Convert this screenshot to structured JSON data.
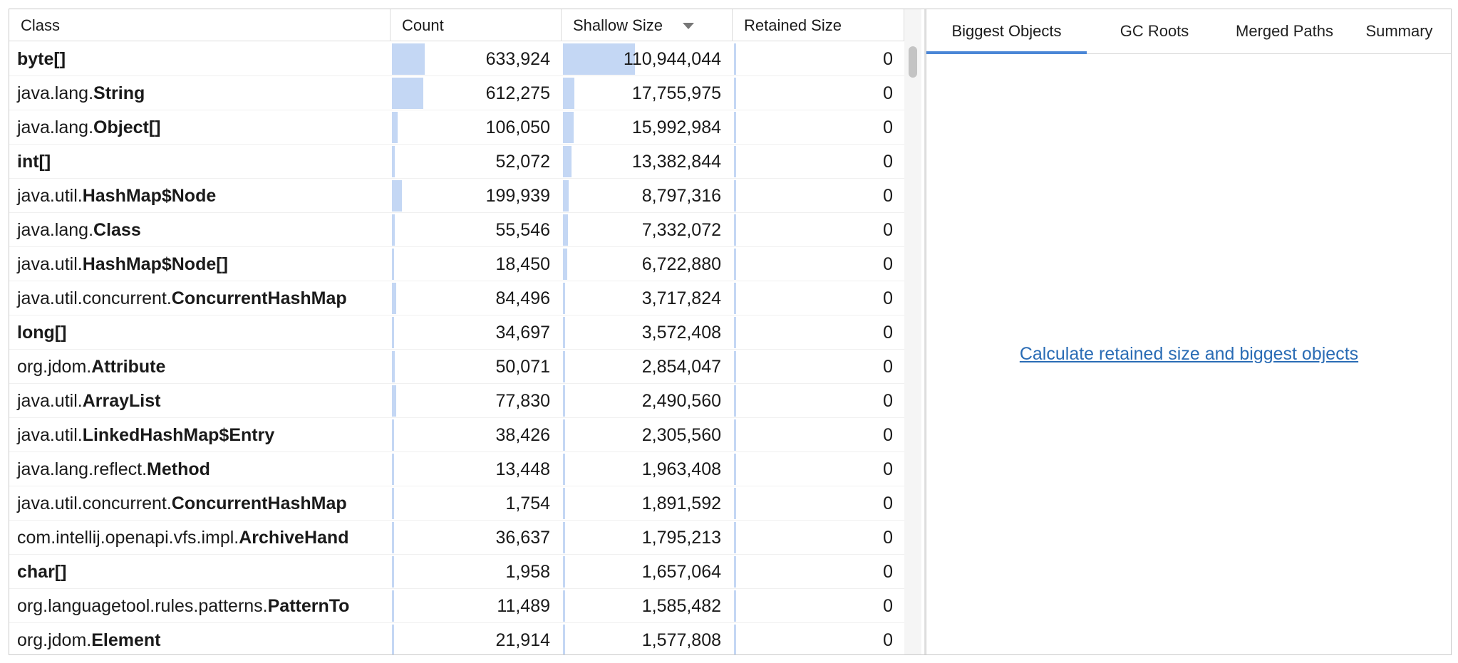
{
  "table": {
    "columns": [
      "Class",
      "Count",
      "Shallow Size",
      "Retained Size"
    ],
    "rows": [
      {
        "name": "byte[]",
        "count": "633,924",
        "shallow": "110,944,044",
        "retained": "0"
      },
      {
        "package": "java.lang.",
        "name": "String",
        "count": "612,275",
        "shallow": "17,755,975",
        "retained": "0"
      },
      {
        "package": "java.lang.",
        "name": "Object[]",
        "count": "106,050",
        "shallow": "15,992,984",
        "retained": "0"
      },
      {
        "name": "int[]",
        "count": "52,072",
        "shallow": "13,382,844",
        "retained": "0"
      },
      {
        "package": "java.util.",
        "name": "HashMap$Node",
        "count": "199,939",
        "shallow": "8,797,316",
        "retained": "0"
      },
      {
        "package": "java.lang.",
        "name": "Class",
        "count": "55,546",
        "shallow": "7,332,072",
        "retained": "0"
      },
      {
        "package": "java.util.",
        "name": "HashMap$Node[]",
        "count": "18,450",
        "shallow": "6,722,880",
        "retained": "0"
      },
      {
        "package": "java.util.concurrent.",
        "name": "ConcurrentHashMap",
        "count": "84,496",
        "shallow": "3,717,824",
        "retained": "0"
      },
      {
        "name": "long[]",
        "count": "34,697",
        "shallow": "3,572,408",
        "retained": "0"
      },
      {
        "package": "org.jdom.",
        "name": "Attribute",
        "count": "50,071",
        "shallow": "2,854,047",
        "retained": "0"
      },
      {
        "package": "java.util.",
        "name": "ArrayList",
        "count": "77,830",
        "shallow": "2,490,560",
        "retained": "0"
      },
      {
        "package": "java.util.",
        "name": "LinkedHashMap$Entry",
        "count": "38,426",
        "shallow": "2,305,560",
        "retained": "0"
      },
      {
        "package": "java.lang.reflect.",
        "name": "Method",
        "count": "13,448",
        "shallow": "1,963,408",
        "retained": "0"
      },
      {
        "package": "java.util.concurrent.",
        "name": "ConcurrentHashMap",
        "count": "1,754",
        "shallow": "1,891,592",
        "retained": "0"
      },
      {
        "package": "com.intellij.openapi.vfs.impl.",
        "name": "ArchiveHand",
        "count": "36,637",
        "shallow": "1,795,213",
        "retained": "0"
      },
      {
        "name": "char[]",
        "count": "1,958",
        "shallow": "1,657,064",
        "retained": "0"
      },
      {
        "package": "org.languagetool.rules.patterns.",
        "name": "PatternTo",
        "count": "11,489",
        "shallow": "1,585,482",
        "retained": "0"
      },
      {
        "package": "org.jdom.",
        "name": "Element",
        "count": "21,914",
        "shallow": "1,577,808",
        "retained": "0"
      }
    ]
  },
  "tabs": [
    "Biggest Objects",
    "GC Roots",
    "Merged Paths",
    "Summary"
  ],
  "link": "Calculate retained size and biggest objects"
}
